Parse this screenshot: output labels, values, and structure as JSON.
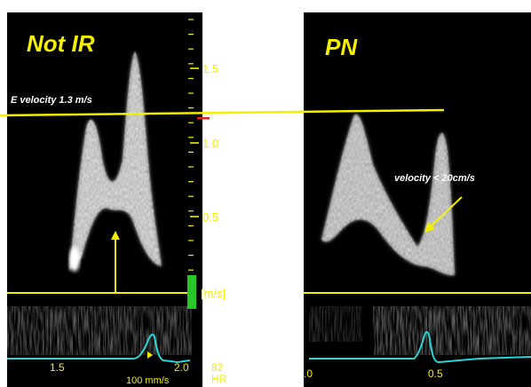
{
  "colors": {
    "background": "#000000",
    "page": "#ffffff",
    "annotation": "#f5f000",
    "scale_text": "#f2ee00",
    "axis_text": "#f2ee00",
    "ecg": "#29d6d6",
    "scale_marker": "#e02020",
    "scale_indicator": "#28c828",
    "doppler": "#d8d8d8"
  },
  "left_panel": {
    "title": "Not IR",
    "note": "E velocity 1.3 m/s",
    "scale": {
      "ticks": [
        "1.5",
        "1.0",
        "0.5"
      ],
      "unit": "[m/s]"
    },
    "time_axis": [
      "1.5",
      "2.0"
    ],
    "sweep_speed": "100 mm/s",
    "heart_rate_value": "82",
    "heart_rate_label": "HR"
  },
  "right_panel": {
    "title": "PN",
    "note": "velocity < 20cm/s",
    "time_axis": [
      ".0",
      "0.5"
    ]
  }
}
